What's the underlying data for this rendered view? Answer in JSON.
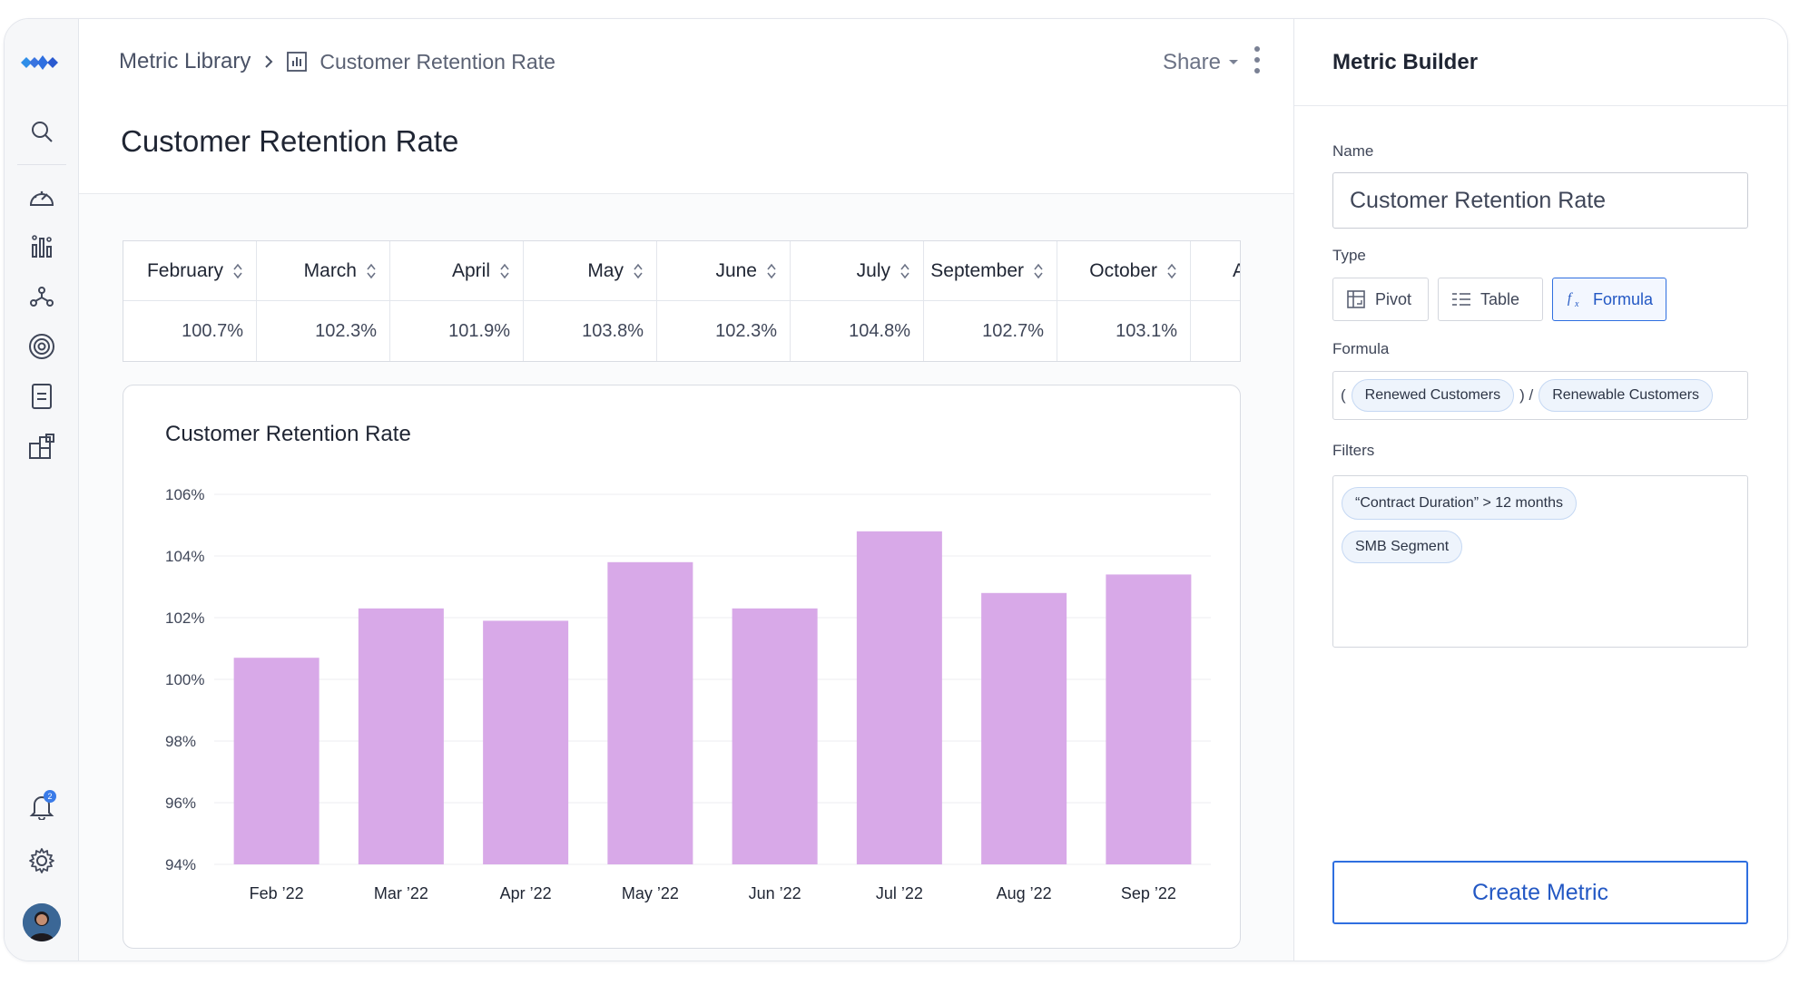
{
  "breadcrumb": {
    "parent": "Metric Library",
    "current": "Customer Retention Rate"
  },
  "header": {
    "share_label": "Share"
  },
  "page": {
    "title": "Customer Retention Rate"
  },
  "notifications": {
    "count": "2"
  },
  "table": {
    "columns": [
      {
        "header": "February",
        "value": "100.7%"
      },
      {
        "header": "March",
        "value": "102.3%"
      },
      {
        "header": "April",
        "value": "101.9%"
      },
      {
        "header": "May",
        "value": "103.8%"
      },
      {
        "header": "June",
        "value": "102.3%"
      },
      {
        "header": "July",
        "value": "104.8%"
      },
      {
        "header": "September",
        "value": "102.7%"
      },
      {
        "header": "October",
        "value": "103.1%"
      },
      {
        "header": "A",
        "value": ""
      }
    ]
  },
  "chart_data": {
    "type": "bar",
    "title": "Customer Retention Rate",
    "categories": [
      "Feb ’22",
      "Mar ’22",
      "Apr ’22",
      "May ’22",
      "Jun ’22",
      "Jul ’22",
      "Aug ’22",
      "Sep ’22"
    ],
    "values": [
      100.7,
      102.3,
      101.9,
      103.8,
      102.3,
      104.8,
      102.8,
      103.4
    ],
    "yticks": [
      "94%",
      "96%",
      "98%",
      "100%",
      "102%",
      "104%",
      "106%"
    ],
    "ylim": [
      94,
      106
    ],
    "grid": true,
    "bar_color": "#d8a9e8"
  },
  "panel": {
    "title": "Metric Builder",
    "name_label": "Name",
    "name_value": "Customer Retention Rate",
    "type_label": "Type",
    "types": {
      "pivot": "Pivot",
      "table": "Table",
      "formula": "Formula"
    },
    "formula_label": "Formula",
    "formula": {
      "open": "(",
      "term1": "Renewed Customers",
      "op": ") /",
      "term2": "Renewable Customers"
    },
    "filters_label": "Filters",
    "filters": [
      "“Contract Duration” > 12 months",
      "SMB Segment"
    ],
    "create_label": "Create Metric"
  },
  "colors": {
    "accent": "#2f6fe0",
    "bar": "#d8a9e8"
  }
}
